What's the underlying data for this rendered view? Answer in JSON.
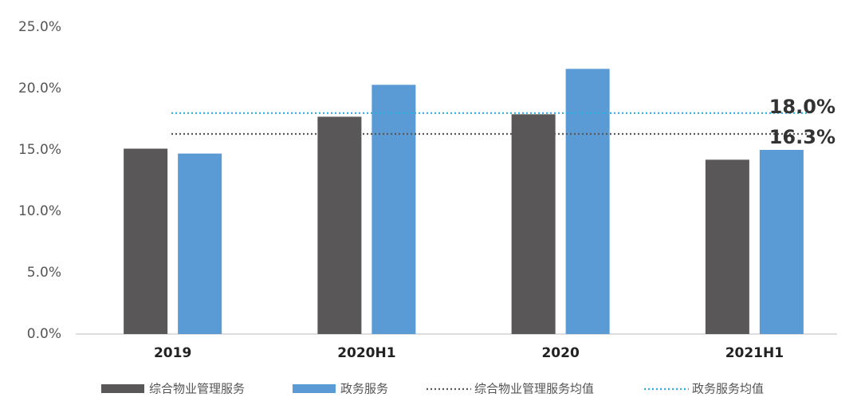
{
  "chart_data": {
    "type": "bar",
    "categories": [
      "2019",
      "2020H1",
      "2020",
      "2021H1"
    ],
    "series": [
      {
        "name": "综合物业管理服务",
        "color": "#595757",
        "values": [
          15.1,
          17.7,
          17.9,
          14.2
        ]
      },
      {
        "name": "政务服务",
        "color": "#5b9bd5",
        "values": [
          14.7,
          20.3,
          21.6,
          15.0
        ]
      }
    ],
    "reference_lines": [
      {
        "name": "综合物业管理服务均值",
        "color": "#595757",
        "value": 16.3,
        "value_label": "16.3%"
      },
      {
        "name": "政务服务均值",
        "color": "#2bb0e6",
        "value": 18.0,
        "value_label": "18.0%"
      }
    ],
    "ylim": [
      0,
      25
    ],
    "yticks": [
      {
        "value": 0,
        "label": "0.0%"
      },
      {
        "value": 5,
        "label": "5.0%"
      },
      {
        "value": 10,
        "label": "10.0%"
      },
      {
        "value": 15,
        "label": "15.0%"
      },
      {
        "value": 20,
        "label": "20.0%"
      },
      {
        "value": 25,
        "label": "25.0%"
      }
    ],
    "grid": false
  }
}
